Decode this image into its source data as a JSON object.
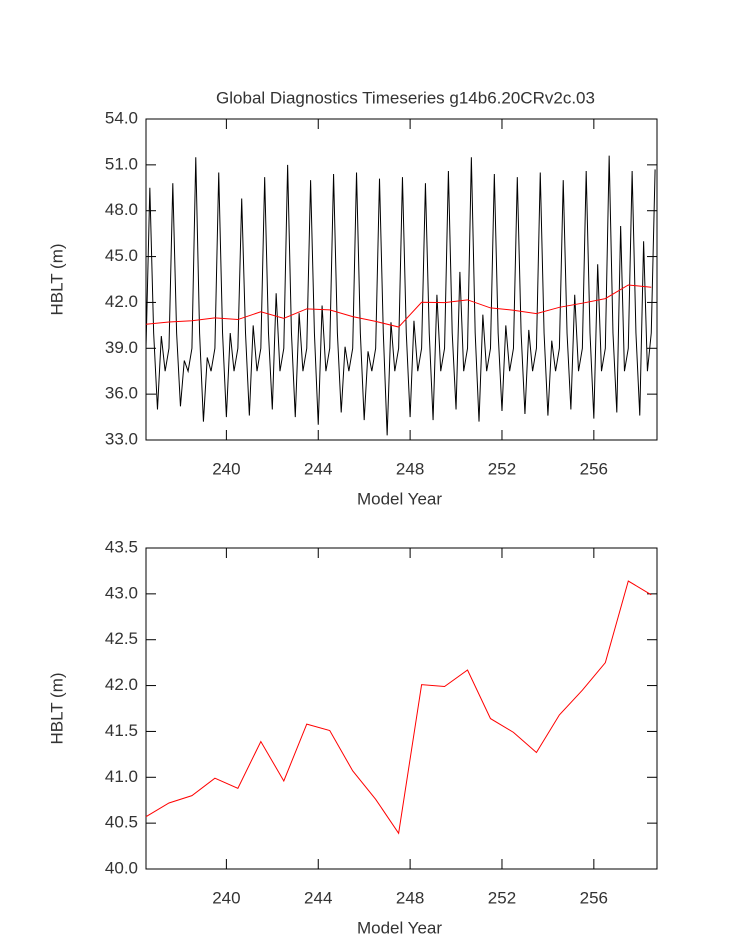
{
  "chart_data": [
    {
      "type": "line",
      "title": "Global Diagnostics Timeseries g14b6.20CRv2c.03",
      "ylabel": "HBLT (m)",
      "xlabel": "Model Year",
      "xlim": [
        236.5,
        258.75
      ],
      "ylim": [
        33,
        54
      ],
      "xticks": [
        240,
        244,
        248,
        252,
        256
      ],
      "yticks": [
        {
          "value": 33,
          "label": "33.0"
        },
        {
          "value": 36,
          "label": "36.0"
        },
        {
          "value": 39,
          "label": "39.0"
        },
        {
          "value": 42,
          "label": "42.0"
        },
        {
          "value": 45,
          "label": "45.0"
        },
        {
          "value": 48,
          "label": "48.0"
        },
        {
          "value": 51,
          "label": "51.0"
        },
        {
          "value": 54,
          "label": "54.0"
        }
      ],
      "series": [
        {
          "color": "#000000",
          "x": [
            236.5,
            236.667,
            236.833,
            237,
            237.167,
            237.333,
            237.5,
            237.667,
            237.833,
            238,
            238.167,
            238.333,
            238.5,
            238.667,
            238.833,
            239,
            239.167,
            239.333,
            239.5,
            239.667,
            239.833,
            240,
            240.167,
            240.333,
            240.5,
            240.667,
            240.833,
            241,
            241.167,
            241.333,
            241.5,
            241.667,
            241.833,
            242,
            242.167,
            242.333,
            242.5,
            242.667,
            242.833,
            243,
            243.167,
            243.333,
            243.5,
            243.667,
            243.833,
            244,
            244.167,
            244.333,
            244.5,
            244.667,
            244.833,
            245,
            245.167,
            245.333,
            245.5,
            245.667,
            245.833,
            246,
            246.167,
            246.333,
            246.5,
            246.667,
            246.833,
            247,
            247.167,
            247.333,
            247.5,
            247.667,
            247.833,
            248,
            248.167,
            248.333,
            248.5,
            248.667,
            248.833,
            249,
            249.167,
            249.333,
            249.5,
            249.667,
            249.833,
            250,
            250.167,
            250.333,
            250.5,
            250.667,
            250.833,
            251,
            251.167,
            251.333,
            251.5,
            251.667,
            251.833,
            252,
            252.167,
            252.333,
            252.5,
            252.667,
            252.833,
            253,
            253.167,
            253.333,
            253.5,
            253.667,
            253.833,
            254,
            254.167,
            254.333,
            254.5,
            254.667,
            254.833,
            255,
            255.167,
            255.333,
            255.5,
            255.667,
            255.833,
            256,
            256.167,
            256.333,
            256.5,
            256.667,
            256.833,
            257,
            257.167,
            257.333,
            257.5,
            257.667,
            257.833,
            258,
            258.167,
            258.333,
            258.5,
            258.667
          ],
          "values": [
            39,
            49.5,
            40,
            35,
            39.8,
            37.5,
            39,
            49.8,
            40,
            35.2,
            38.2,
            37.5,
            39,
            51.5,
            40,
            34.2,
            38.4,
            37.5,
            39,
            50.5,
            40,
            34.5,
            40,
            37.5,
            39,
            48.8,
            40,
            34.6,
            40.5,
            37.5,
            39,
            50.2,
            40,
            35,
            42.6,
            37.5,
            39,
            51,
            40,
            34.5,
            41.3,
            37.5,
            39,
            50,
            40,
            34,
            41.8,
            37.5,
            39,
            50.4,
            40,
            34.8,
            39.1,
            37.5,
            39,
            50.5,
            40,
            34.3,
            38.8,
            37.5,
            39,
            50.1,
            40,
            33.3,
            40.7,
            37.5,
            39,
            50.2,
            40,
            34.5,
            40.8,
            37.5,
            39,
            49.8,
            40,
            34.3,
            42.5,
            37.5,
            39,
            50.6,
            40,
            35,
            44,
            37.5,
            39,
            51.5,
            40,
            34.2,
            41.2,
            37.5,
            39,
            50.4,
            40,
            34.9,
            40.5,
            37.5,
            39,
            50.2,
            40,
            34.7,
            40.2,
            37.5,
            39,
            50.5,
            40,
            34.6,
            39.5,
            37.5,
            39,
            50,
            40,
            35,
            42.5,
            37.5,
            39,
            50.6,
            40,
            34.4,
            44.5,
            37.5,
            39,
            51.6,
            40,
            34.8,
            47,
            37.5,
            39,
            50.6,
            40,
            34.6,
            46,
            37.5,
            40,
            50.7
          ]
        },
        {
          "color": "#ff0000",
          "x": [
            236.5,
            237.5,
            238.5,
            239.5,
            240.5,
            241.5,
            242.5,
            243.5,
            244.5,
            245.5,
            246.5,
            247.5,
            248.5,
            249.5,
            250.5,
            251.5,
            252.5,
            253.5,
            254.5,
            255.5,
            256.5,
            257.5,
            258.5
          ],
          "values": [
            40.57,
            40.72,
            40.8,
            40.99,
            40.88,
            41.39,
            40.96,
            41.58,
            41.51,
            41.07,
            40.76,
            40.39,
            42.01,
            41.99,
            42.17,
            41.64,
            41.49,
            41.27,
            41.68,
            41.95,
            42.25,
            43.14,
            42.99
          ]
        }
      ]
    },
    {
      "type": "line",
      "ylabel": "HBLT (m)",
      "xlabel": "Model Year",
      "xlim": [
        236.5,
        258.75
      ],
      "ylim": [
        40,
        43.5
      ],
      "xticks": [
        240,
        244,
        248,
        252,
        256
      ],
      "yticks": [
        {
          "value": 40,
          "label": "40.0"
        },
        {
          "value": 40.5,
          "label": "40.5"
        },
        {
          "value": 41,
          "label": "41.0"
        },
        {
          "value": 41.5,
          "label": "41.5"
        },
        {
          "value": 42,
          "label": "42.0"
        },
        {
          "value": 42.5,
          "label": "42.5"
        },
        {
          "value": 43,
          "label": "43.0"
        },
        {
          "value": 43.5,
          "label": "43.5"
        }
      ],
      "series": [
        {
          "color": "#ff0000",
          "x": [
            236.5,
            237.5,
            238.5,
            239.5,
            240.5,
            241.5,
            242.5,
            243.5,
            244.5,
            245.5,
            246.5,
            247.5,
            248.5,
            249.5,
            250.5,
            251.5,
            252.5,
            253.5,
            254.5,
            255.5,
            256.5,
            257.5,
            258.5
          ],
          "values": [
            40.57,
            40.72,
            40.8,
            40.99,
            40.88,
            41.39,
            40.96,
            41.58,
            41.51,
            41.07,
            40.76,
            40.39,
            42.01,
            41.99,
            42.17,
            41.64,
            41.49,
            41.27,
            41.68,
            41.95,
            42.25,
            43.14,
            42.99
          ]
        }
      ]
    }
  ]
}
